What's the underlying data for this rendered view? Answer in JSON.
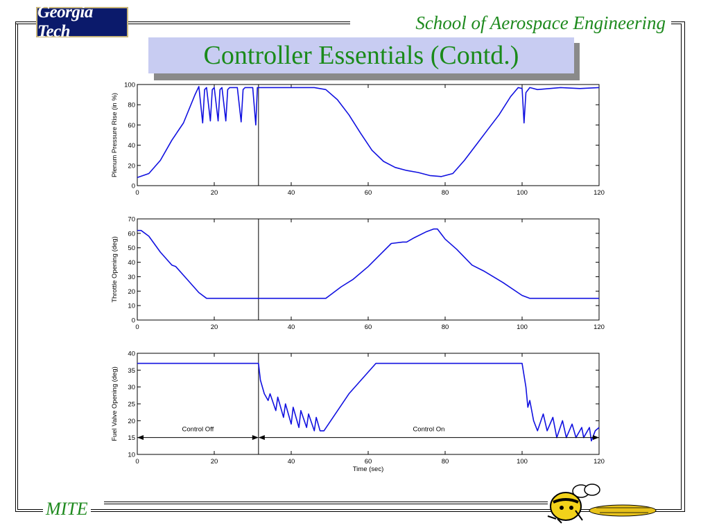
{
  "header": {
    "logo_text": "Georgia Tech",
    "school": "School of Aerospace Engineering",
    "slide_title": "Controller Essentials (Contd.)"
  },
  "footer": {
    "label": "MITE",
    "mascot_icon": "yellow-jacket-mascot-icon"
  },
  "colors": {
    "trace": "#1010e0",
    "title_text": "#1a8a1a",
    "title_bg": "#c8ccf2",
    "logo_bg": "#0b1a6b"
  },
  "chart_data": [
    {
      "type": "line",
      "ylabel": "Plenum Pressure Rise (in %)",
      "xlabel": "",
      "xlim": [
        0,
        120
      ],
      "ylim": [
        0,
        100
      ],
      "xticks": [
        0,
        20,
        40,
        60,
        80,
        100,
        120
      ],
      "yticks": [
        0,
        20,
        40,
        60,
        80,
        100
      ],
      "marker_x": 31.5,
      "series": [
        {
          "x": [
            0,
            3,
            6,
            9,
            12,
            15,
            16,
            17,
            17.5,
            18,
            19,
            19.5,
            20,
            21,
            21.5,
            22,
            23,
            23.5,
            24,
            26,
            27,
            27.5,
            28,
            30,
            30.8,
            31.2,
            31.5,
            33,
            40,
            46,
            49,
            52,
            55,
            58,
            61,
            64,
            67,
            70,
            73,
            76,
            79,
            82,
            85,
            88,
            91,
            94,
            97,
            99,
            100,
            100.5,
            101,
            102,
            104,
            110,
            115,
            120
          ],
          "y": [
            8,
            12,
            25,
            45,
            62,
            90,
            98,
            62,
            95,
            97,
            64,
            95,
            97,
            64,
            95,
            97,
            64,
            95,
            97,
            97,
            63,
            95,
            97,
            97,
            60,
            97,
            97,
            97,
            97,
            97,
            95,
            85,
            70,
            52,
            35,
            24,
            18,
            15,
            13,
            10,
            9,
            12,
            25,
            40,
            55,
            70,
            88,
            97,
            96,
            62,
            92,
            97,
            95,
            97,
            96,
            97
          ]
        }
      ]
    },
    {
      "type": "line",
      "ylabel": "Throttle Opening (deg)",
      "xlabel": "",
      "xlim": [
        0,
        120
      ],
      "ylim": [
        0,
        70
      ],
      "xticks": [
        0,
        20,
        40,
        60,
        80,
        100,
        120
      ],
      "yticks": [
        0,
        10,
        20,
        30,
        40,
        50,
        60,
        70
      ],
      "marker_x": 31.5,
      "series": [
        {
          "x": [
            0,
            1,
            3,
            6,
            9,
            10,
            13,
            16,
            18,
            20,
            30,
            40,
            49,
            50,
            53,
            56,
            60,
            63,
            66,
            69,
            70,
            72,
            75,
            77,
            78,
            80,
            83,
            87,
            90,
            95,
            100,
            102,
            103,
            110,
            120
          ],
          "y": [
            62,
            62,
            58,
            47,
            38,
            37,
            28,
            19,
            15,
            15,
            15,
            15,
            15,
            17,
            23,
            28,
            37,
            45,
            53,
            54,
            54,
            57,
            61,
            63,
            63,
            56,
            49,
            38,
            34,
            26,
            17,
            15,
            15,
            15,
            15
          ]
        }
      ]
    },
    {
      "type": "line",
      "ylabel": "Fuel Valve Opening (deg)",
      "xlabel": "Time (sec)",
      "xlim": [
        0,
        120
      ],
      "ylim": [
        10,
        40
      ],
      "xticks": [
        0,
        20,
        40,
        60,
        80,
        100,
        120
      ],
      "yticks": [
        10,
        15,
        20,
        25,
        30,
        35,
        40
      ],
      "marker_x": 31.5,
      "series": [
        {
          "x": [
            0,
            10,
            20,
            30,
            31.5,
            32,
            33,
            34,
            34.5,
            36,
            36.5,
            38,
            38.5,
            40,
            40.5,
            42,
            42.5,
            44,
            44.5,
            46,
            46.5,
            47.5,
            48.5,
            55,
            62,
            70,
            80,
            90,
            100,
            101,
            101.5,
            102,
            103,
            104,
            105.5,
            106.5,
            108,
            109,
            110.5,
            111.5,
            113,
            114,
            115.5,
            116,
            117.5,
            118,
            119,
            120
          ],
          "y": [
            37,
            37,
            37,
            37,
            37,
            32,
            28,
            26,
            28,
            23,
            27,
            21,
            25,
            19,
            24,
            18,
            23,
            18,
            22,
            17,
            21,
            17,
            17,
            28,
            37,
            37,
            37,
            37,
            37,
            30,
            24,
            26,
            20,
            17,
            22,
            17,
            21,
            15,
            20,
            15,
            19,
            15,
            18,
            15,
            18,
            14,
            17,
            18
          ]
        }
      ],
      "annotations": [
        {
          "text": "Control Off",
          "x_start": 0,
          "x_end": 31.5,
          "y": 15
        },
        {
          "text": "Control On",
          "x_start": 31.5,
          "x_end": 120,
          "y": 15
        }
      ]
    }
  ]
}
